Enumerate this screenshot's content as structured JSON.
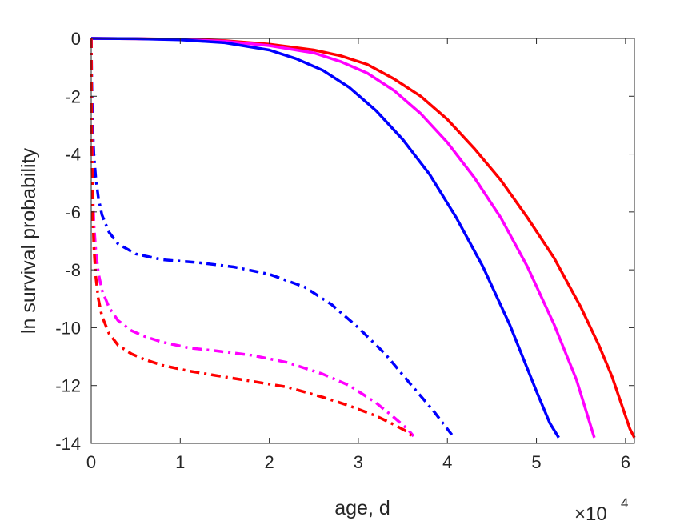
{
  "chart_data": {
    "type": "line",
    "title": "",
    "xlabel": "age, d",
    "ylabel": "ln survival probability",
    "x_exponent_base": "×10",
    "x_exponent_power": "4",
    "xlim": [
      0,
      61000
    ],
    "ylim": [
      -14,
      0
    ],
    "xticks": [
      0,
      10000,
      20000,
      30000,
      40000,
      50000,
      60000
    ],
    "xtick_labels": [
      "0",
      "1",
      "2",
      "3",
      "4",
      "5",
      "6"
    ],
    "yticks": [
      0,
      -2,
      -4,
      -6,
      -8,
      -10,
      -12,
      -14
    ],
    "ytick_labels": [
      "0",
      "-2",
      "-4",
      "-6",
      "-8",
      "-10",
      "-12",
      "-14"
    ],
    "grid": false,
    "legend": null,
    "series": [
      {
        "color": "#ff0000",
        "style": "solid",
        "x": [
          0,
          5000,
          10000,
          15000,
          20000,
          25000,
          28000,
          31000,
          34000,
          37000,
          40000,
          43000,
          46000,
          49000,
          52000,
          55000,
          57000,
          58500,
          59500,
          60500,
          61000
        ],
        "y": [
          0,
          -0.01,
          -0.03,
          -0.08,
          -0.2,
          -0.4,
          -0.6,
          -0.9,
          -1.4,
          -2.0,
          -2.8,
          -3.8,
          -4.9,
          -6.2,
          -7.6,
          -9.3,
          -10.6,
          -11.7,
          -12.6,
          -13.5,
          -13.8
        ]
      },
      {
        "color": "#ff00ff",
        "style": "solid",
        "x": [
          0,
          5000,
          10000,
          15000,
          20000,
          25000,
          28000,
          31000,
          34000,
          37000,
          40000,
          43000,
          46000,
          49000,
          52000,
          54500,
          56000,
          56500
        ],
        "y": [
          0,
          -0.01,
          -0.04,
          -0.1,
          -0.25,
          -0.5,
          -0.8,
          -1.2,
          -1.8,
          -2.6,
          -3.6,
          -4.8,
          -6.2,
          -7.9,
          -9.9,
          -11.8,
          -13.3,
          -13.8
        ]
      },
      {
        "color": "#0000ff",
        "style": "solid",
        "x": [
          0,
          5000,
          10000,
          15000,
          20000,
          23000,
          26000,
          29000,
          32000,
          35000,
          38000,
          41000,
          44000,
          47000,
          50000,
          51500,
          52500
        ],
        "y": [
          0,
          -0.01,
          -0.05,
          -0.15,
          -0.4,
          -0.7,
          -1.1,
          -1.7,
          -2.5,
          -3.5,
          -4.7,
          -6.2,
          -7.9,
          -9.9,
          -12.2,
          -13.3,
          -13.8
        ]
      },
      {
        "color": "#0000ff",
        "style": "dashdot",
        "x": [
          0,
          50,
          150,
          300,
          500,
          800,
          1200,
          2000,
          3000,
          5000,
          8000,
          12000,
          16000,
          20000,
          24000,
          27000,
          30000,
          33000,
          36000,
          38500,
          40500
        ],
        "y": [
          0,
          -1.5,
          -3.0,
          -4.0,
          -4.8,
          -5.5,
          -6.1,
          -6.7,
          -7.1,
          -7.45,
          -7.65,
          -7.75,
          -7.9,
          -8.15,
          -8.6,
          -9.2,
          -10.0,
          -10.9,
          -12.0,
          -12.9,
          -13.7
        ]
      },
      {
        "color": "#ff00ff",
        "style": "dashdot",
        "x": [
          0,
          50,
          150,
          300,
          500,
          800,
          1200,
          2000,
          3000,
          4500,
          6000,
          8000,
          11000,
          14000,
          18000,
          22000,
          26000,
          29000,
          32000,
          34000,
          35500,
          36200
        ],
        "y": [
          0,
          -3.0,
          -5.0,
          -6.4,
          -7.3,
          -8.1,
          -8.7,
          -9.3,
          -9.75,
          -10.1,
          -10.3,
          -10.5,
          -10.7,
          -10.8,
          -10.95,
          -11.2,
          -11.6,
          -12.0,
          -12.6,
          -13.1,
          -13.5,
          -13.75
        ]
      },
      {
        "color": "#ff0000",
        "style": "dashdot",
        "x": [
          0,
          50,
          150,
          300,
          500,
          800,
          1200,
          2000,
          3000,
          4500,
          6000,
          8000,
          11000,
          14000,
          18000,
          22000,
          26000,
          29000,
          32000,
          34000,
          35500,
          36000
        ],
        "y": [
          0,
          -3.5,
          -5.8,
          -7.2,
          -8.2,
          -9.0,
          -9.6,
          -10.2,
          -10.6,
          -10.9,
          -11.1,
          -11.3,
          -11.5,
          -11.65,
          -11.85,
          -12.05,
          -12.4,
          -12.7,
          -13.05,
          -13.35,
          -13.6,
          -13.75
        ]
      }
    ]
  }
}
